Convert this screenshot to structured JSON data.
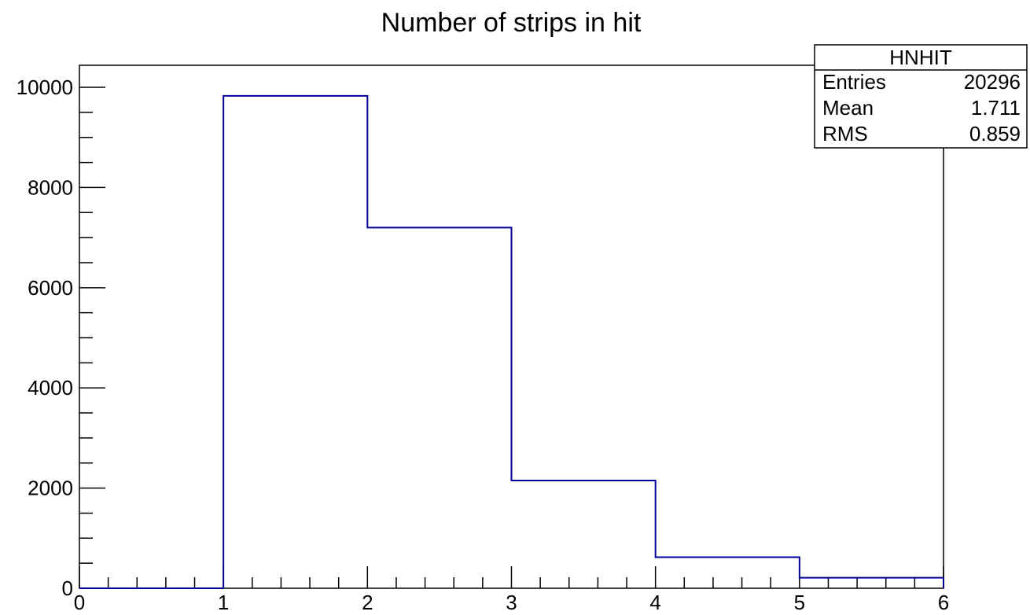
{
  "chart_data": {
    "type": "bar",
    "title": "Number of strips in hit",
    "xlabel": "",
    "ylabel": "",
    "xlim": [
      0,
      6
    ],
    "ylim": [
      0,
      10440
    ],
    "bin_edges": [
      0,
      1,
      2,
      3,
      4,
      5,
      6
    ],
    "values": [
      0,
      9830,
      7200,
      2150,
      620,
      210
    ],
    "x_ticks": [
      "0",
      "1",
      "2",
      "3",
      "4",
      "5",
      "6"
    ],
    "y_ticks": [
      "0",
      "2000",
      "4000",
      "6000",
      "8000",
      "10000"
    ],
    "line_color": "#000099",
    "stats_box": {
      "name": "HNHIT",
      "rows": [
        {
          "label": "Entries",
          "value": "20296"
        },
        {
          "label": "Mean",
          "value": "1.711"
        },
        {
          "label": "RMS",
          "value": "0.859"
        }
      ]
    }
  }
}
